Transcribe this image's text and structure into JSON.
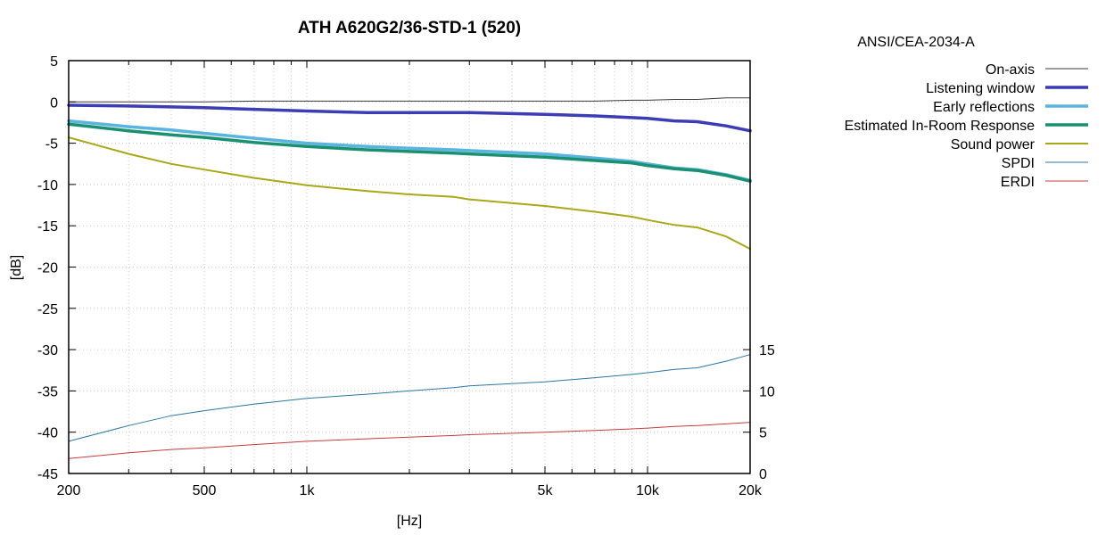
{
  "chart_data": {
    "type": "line",
    "title": "ATH A620G2/36-STD-1 (520)",
    "xlabel": "[Hz]",
    "ylabel": "[dB]",
    "xscale": "log",
    "xlim": [
      200,
      20000
    ],
    "ylim": [
      -45,
      5
    ],
    "y2lim": [
      0,
      50
    ],
    "grid": true,
    "legend_title": "ANSI/CEA-2034-A",
    "legend_position": "outside-right",
    "xticks": [
      {
        "value": 200,
        "label": "200"
      },
      {
        "value": 500,
        "label": "500"
      },
      {
        "value": 1000,
        "label": "1k"
      },
      {
        "value": 5000,
        "label": "5k"
      },
      {
        "value": 10000,
        "label": "10k"
      },
      {
        "value": 20000,
        "label": "20k"
      }
    ],
    "yticks": [
      {
        "value": 5,
        "label": "5"
      },
      {
        "value": 0,
        "label": "0"
      },
      {
        "value": -5,
        "label": "-5"
      },
      {
        "value": -10,
        "label": "-10"
      },
      {
        "value": -15,
        "label": "-15"
      },
      {
        "value": -20,
        "label": "-20"
      },
      {
        "value": -25,
        "label": "-25"
      },
      {
        "value": -30,
        "label": "-30"
      },
      {
        "value": -35,
        "label": "-35"
      },
      {
        "value": -40,
        "label": "-40"
      },
      {
        "value": -45,
        "label": "-45"
      }
    ],
    "y2ticks": [
      {
        "value": 0,
        "label": "0"
      },
      {
        "value": 5,
        "label": "5"
      },
      {
        "value": 10,
        "label": "10"
      },
      {
        "value": 15,
        "label": "15"
      }
    ],
    "x": [
      200,
      300,
      400,
      500,
      700,
      1000,
      1500,
      2000,
      2700,
      3000,
      5000,
      7000,
      9000,
      10000,
      12000,
      14000,
      17000,
      20000
    ],
    "series": [
      {
        "name": "On-axis",
        "axis": "left",
        "color": "#3a3a3a",
        "width": 1,
        "values": [
          0,
          0,
          0,
          0,
          0.1,
          0.1,
          0.1,
          0.1,
          0.1,
          0.1,
          0.1,
          0.1,
          0.2,
          0.2,
          0.3,
          0.3,
          0.5,
          0.5
        ]
      },
      {
        "name": "Listening window",
        "axis": "left",
        "color": "#3c3cb4",
        "width": 3.5,
        "values": [
          -0.4,
          -0.5,
          -0.6,
          -0.7,
          -0.9,
          -1.1,
          -1.3,
          -1.3,
          -1.3,
          -1.3,
          -1.5,
          -1.7,
          -1.9,
          -2.0,
          -2.3,
          -2.4,
          -2.9,
          -3.5
        ]
      },
      {
        "name": "Early reflections",
        "axis": "left",
        "color": "#5ab4e0",
        "width": 3.5,
        "values": [
          -2.3,
          -3.0,
          -3.4,
          -3.8,
          -4.4,
          -5.0,
          -5.4,
          -5.6,
          -5.8,
          -5.9,
          -6.3,
          -6.8,
          -7.2,
          -7.5,
          -8.0,
          -8.2,
          -8.8,
          -9.5
        ]
      },
      {
        "name": "Estimated In-Room Response",
        "axis": "left",
        "color": "#1a9070",
        "width": 3.5,
        "values": [
          -2.7,
          -3.5,
          -4.0,
          -4.3,
          -4.9,
          -5.4,
          -5.8,
          -6.0,
          -6.2,
          -6.3,
          -6.7,
          -7.1,
          -7.4,
          -7.7,
          -8.1,
          -8.3,
          -8.9,
          -9.6
        ]
      },
      {
        "name": "Sound power",
        "axis": "left",
        "color": "#a8a818",
        "width": 2,
        "values": [
          -4.3,
          -6.3,
          -7.5,
          -8.2,
          -9.2,
          -10.1,
          -10.8,
          -11.2,
          -11.5,
          -11.8,
          -12.6,
          -13.3,
          -13.9,
          -14.3,
          -14.9,
          -15.2,
          -16.3,
          -17.8
        ]
      },
      {
        "name": "SPDI",
        "axis": "right",
        "color": "#2878a0",
        "width": 1,
        "values": [
          3.9,
          5.8,
          7.0,
          7.6,
          8.4,
          9.1,
          9.6,
          10.0,
          10.4,
          10.6,
          11.1,
          11.6,
          12.0,
          12.2,
          12.6,
          12.8,
          13.6,
          14.4
        ]
      },
      {
        "name": "ERDI",
        "axis": "right",
        "color": "#c83c3c",
        "width": 1,
        "values": [
          1.8,
          2.5,
          2.9,
          3.1,
          3.5,
          3.9,
          4.2,
          4.4,
          4.6,
          4.7,
          5.0,
          5.2,
          5.4,
          5.5,
          5.7,
          5.8,
          6.0,
          6.2
        ]
      }
    ]
  }
}
